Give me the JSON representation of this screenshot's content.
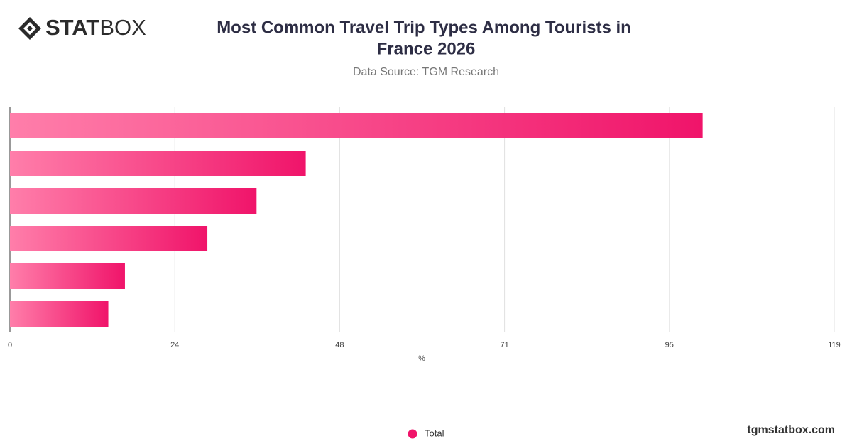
{
  "logo": {
    "bold": "STAT",
    "light": "BOX"
  },
  "footer": "tgmstatbox.com",
  "chart_data": {
    "type": "bar",
    "orientation": "horizontal",
    "title": [
      "Most Common Travel Trip Types Among Tourists in",
      "France 2026"
    ],
    "subtitle": "Data Source: TGM Research",
    "xlabel": "%",
    "categories": [
      null,
      null,
      null,
      null,
      null,
      null
    ],
    "series": [
      {
        "name": "Total",
        "color": "#f0146a",
        "values": [
          100,
          42.7,
          35.6,
          28.5,
          16.6,
          14.2
        ]
      }
    ],
    "xlim": [
      0,
      119
    ],
    "xticks": [
      0,
      {
        "value": 23.8,
        "label": "24"
      },
      {
        "value": 47.6,
        "label": "48"
      },
      {
        "value": 71.4,
        "label": "71"
      },
      {
        "value": 95.2,
        "label": "95"
      },
      119
    ],
    "grid": true,
    "legend": "bottom"
  }
}
